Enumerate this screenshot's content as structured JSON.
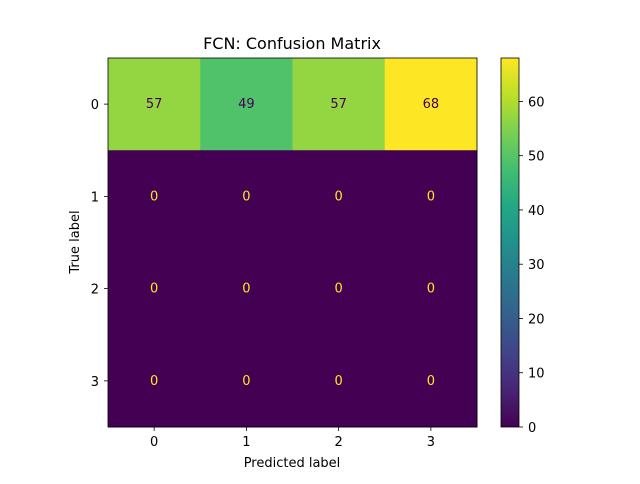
{
  "chart_data": {
    "type": "heatmap",
    "title": "FCN: Confusion Matrix",
    "xlabel": "Predicted label",
    "ylabel": "True label",
    "x_categories": [
      "0",
      "1",
      "2",
      "3"
    ],
    "y_categories": [
      "0",
      "1",
      "2",
      "3"
    ],
    "values": [
      [
        57,
        49,
        57,
        68
      ],
      [
        0,
        0,
        0,
        0
      ],
      [
        0,
        0,
        0,
        0
      ],
      [
        0,
        0,
        0,
        0
      ]
    ],
    "colormap": "viridis",
    "colorbar": {
      "range": [
        0,
        68
      ],
      "ticks": [
        0,
        10,
        20,
        30,
        40,
        50,
        60
      ]
    },
    "colors": {
      "low_text": "#fde725",
      "high_text": "#440154"
    }
  }
}
